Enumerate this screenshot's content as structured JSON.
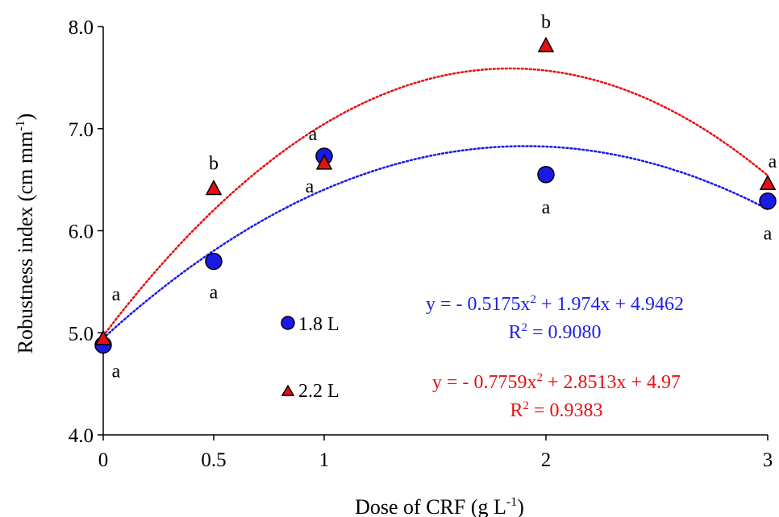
{
  "chart_data": {
    "type": "scatter",
    "xlabel": "Dose of CRF (g L",
    "xlabel_sup": "-1",
    "xlabel_tail": ")",
    "ylabel": "Robustness index (cm mm",
    "ylabel_sup": "-1",
    "ylabel_tail": ")",
    "x_categories": [
      "0",
      "0.5",
      "1",
      "2",
      "3"
    ],
    "x_values": [
      0,
      0.5,
      1,
      2,
      3
    ],
    "ylim": [
      4.0,
      8.0
    ],
    "y_ticks": [
      "4.0",
      "5.0",
      "6.0",
      "7.0",
      "8.0"
    ],
    "grid": false,
    "legend_position": "inside-lower-center",
    "series": [
      {
        "name": "1.8 L",
        "marker": "circle",
        "color": "#1a1ae6",
        "values": [
          4.88,
          5.7,
          6.73,
          6.55,
          6.29
        ],
        "letters": [
          "a",
          "a",
          "a",
          "a",
          "a"
        ],
        "trendline": {
          "a": -0.5175,
          "b": 1.974,
          "c": 4.9462,
          "equation": "y = - 0.5175x",
          "equation_sup": "2",
          "equation_tail": " + 1.974x + 4.9462",
          "r2_prefix": "R",
          "r2_sup": "2",
          "r2_tail": " = 0.9080"
        }
      },
      {
        "name": "2.2 L",
        "marker": "triangle",
        "color": "#e60f0f",
        "values": [
          4.94,
          6.41,
          6.66,
          7.81,
          6.46
        ],
        "letters": [
          "a",
          "b",
          "a",
          "b",
          "a"
        ],
        "trendline": {
          "a": -0.7759,
          "b": 2.8513,
          "c": 4.97,
          "equation": "y = - 0.7759x",
          "equation_sup": "2",
          "equation_tail": " + 2.8513x + 4.97",
          "r2_prefix": "R",
          "r2_sup": "2",
          "r2_tail": " = 0.9383"
        }
      }
    ]
  }
}
